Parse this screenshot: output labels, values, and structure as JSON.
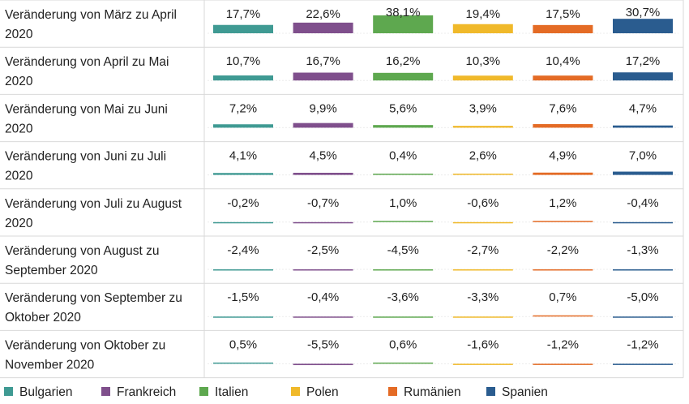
{
  "chart_data": {
    "type": "bar",
    "title": "",
    "xlabel": "",
    "ylabel": "",
    "layout": "table of small bars per row",
    "grid": true,
    "legend_position": "bottom",
    "value_format": "percent, comma decimal",
    "categories": [
      [
        "Veränderung von März zu April",
        "2020"
      ],
      [
        "Veränderung von April zu Mai",
        "2020"
      ],
      [
        "Veränderung von Mai zu Juni",
        "2020"
      ],
      [
        "Veränderung von Juni zu Juli",
        "2020"
      ],
      [
        "Veränderung von Juli zu August",
        "2020"
      ],
      [
        "Veränderung von August zu",
        "September 2020"
      ],
      [
        "Veränderung von September zu",
        "Oktober 2020"
      ],
      [
        "Veränderung von Oktober zu",
        "November 2020"
      ]
    ],
    "series": [
      {
        "name": "Bulgarien",
        "color": "#3f9a93",
        "values": [
          17.7,
          10.7,
          7.2,
          4.1,
          -0.2,
          -2.4,
          -1.5,
          0.5
        ],
        "labels": [
          "17,7%",
          "10,7%",
          "7,2%",
          "4,1%",
          "-0,2%",
          "-2,4%",
          "-1,5%",
          "0,5%"
        ]
      },
      {
        "name": "Frankreich",
        "color": "#7f4f8c",
        "values": [
          22.6,
          16.7,
          9.9,
          4.5,
          -0.7,
          -2.5,
          -0.4,
          -5.5
        ],
        "labels": [
          "22,6%",
          "16,7%",
          "9,9%",
          "4,5%",
          "-0,7%",
          "-2,5%",
          "-0,4%",
          "-5,5%"
        ]
      },
      {
        "name": "Italien",
        "color": "#5ea84f",
        "values": [
          38.1,
          16.2,
          5.6,
          0.4,
          1.0,
          -4.5,
          -3.6,
          0.6
        ],
        "labels": [
          "38,1%",
          "16,2%",
          "5,6%",
          "0,4%",
          "1,0%",
          "-4,5%",
          "-3,6%",
          "0,6%"
        ]
      },
      {
        "name": "Polen",
        "color": "#f0b92a",
        "values": [
          19.4,
          10.3,
          3.9,
          2.6,
          -0.6,
          -2.7,
          -3.3,
          -1.6
        ],
        "labels": [
          "19,4%",
          "10,3%",
          "3,9%",
          "2,6%",
          "-0,6%",
          "-2,7%",
          "-3,3%",
          "-1,6%"
        ]
      },
      {
        "name": "Rumänien",
        "color": "#e46b25",
        "values": [
          17.5,
          10.4,
          7.6,
          4.9,
          1.2,
          -2.2,
          0.7,
          -1.2
        ],
        "labels": [
          "17,5%",
          "10,4%",
          "7,6%",
          "4,9%",
          "1,2%",
          "-2,2%",
          "0,7%",
          "-1,2%"
        ]
      },
      {
        "name": "Spanien",
        "color": "#2a5c8f",
        "values": [
          30.7,
          17.2,
          4.7,
          7.0,
          -0.4,
          -1.3,
          -5.0,
          -1.2
        ],
        "labels": [
          "30,7%",
          "17,2%",
          "4,7%",
          "7,0%",
          "-0,4%",
          "-1,3%",
          "-5,0%",
          "-1,2%"
        ]
      }
    ]
  }
}
